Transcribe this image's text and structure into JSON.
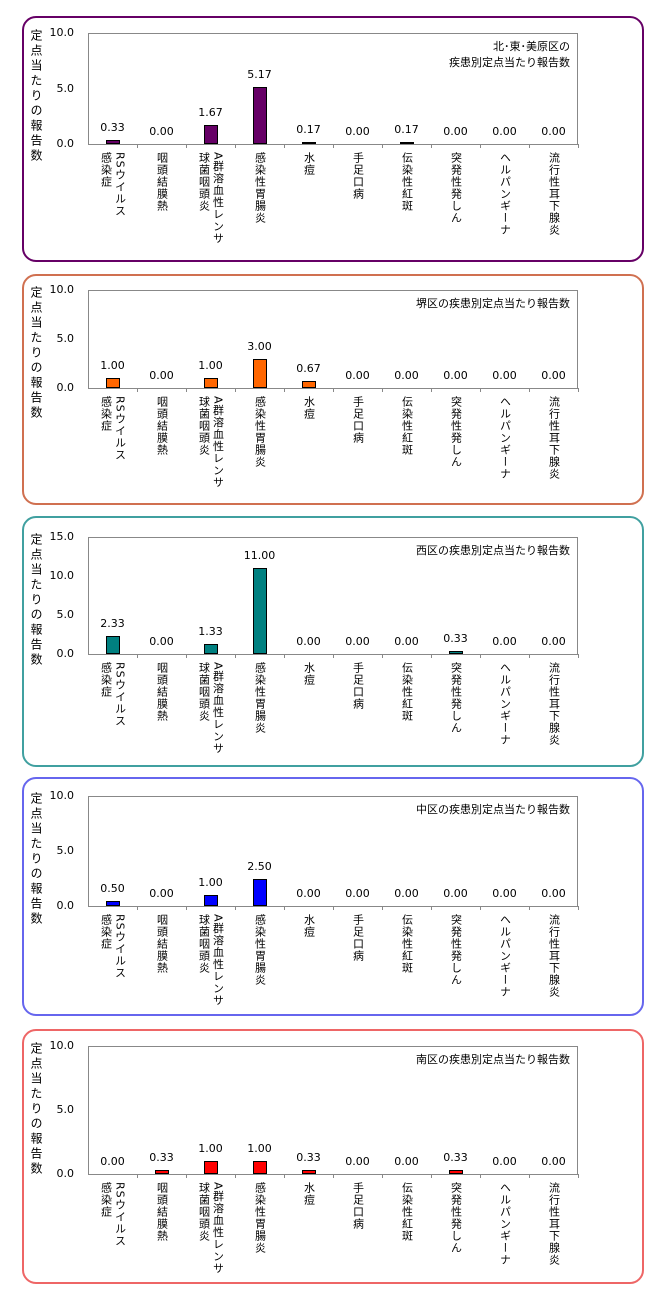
{
  "chart_data": [
    {
      "type": "bar",
      "title": "北･東･美原区の\n疾患別定点当たり報告数",
      "ylabel": "定点当たりの報告数",
      "ylim": [
        0,
        10
      ],
      "yticks": [
        "10.0",
        "5.0",
        "0.0"
      ],
      "color": "#660066",
      "border": "#660066",
      "categories": [
        "RSウイルス\n感染症",
        "咽頭結膜熱",
        "A群溶血性レンサ\n球菌咽頭炎",
        "感染性胃腸炎",
        "水痘",
        "手足口病",
        "伝染性紅斑",
        "突発性発しん",
        "ヘルパンギーナ",
        "流行性耳下腺炎"
      ],
      "values": [
        0.33,
        0.0,
        1.67,
        5.17,
        0.17,
        0.0,
        0.17,
        0.0,
        0.0,
        0.0
      ],
      "labels": [
        "0.33",
        "0.00",
        "1.67",
        "5.17",
        "0.17",
        "0.00",
        "0.17",
        "0.00",
        "0.00",
        "0.00"
      ]
    },
    {
      "type": "bar",
      "title": "堺区の疾患別定点当たり報告数",
      "ylabel": "定点当たりの報告数",
      "ylim": [
        0,
        10
      ],
      "yticks": [
        "10.0",
        "5.0",
        "0.0"
      ],
      "color": "#ff6600",
      "border": "#d07050",
      "categories": [
        "RSウイルス\n感染症",
        "咽頭結膜熱",
        "A群溶血性レンサ\n球菌咽頭炎",
        "感染性胃腸炎",
        "水痘",
        "手足口病",
        "伝染性紅斑",
        "突発性発しん",
        "ヘルパンギーナ",
        "流行性耳下腺炎"
      ],
      "values": [
        1.0,
        0.0,
        1.0,
        3.0,
        0.67,
        0.0,
        0.0,
        0.0,
        0.0,
        0.0
      ],
      "labels": [
        "1.00",
        "0.00",
        "1.00",
        "3.00",
        "0.67",
        "0.00",
        "0.00",
        "0.00",
        "0.00",
        "0.00"
      ]
    },
    {
      "type": "bar",
      "title": "西区の疾患別定点当たり報告数",
      "ylabel": "定点当たりの報告数",
      "ylim": [
        0,
        15
      ],
      "yticks": [
        "15.0",
        "10.0",
        "5.0",
        "0.0"
      ],
      "color": "#008080",
      "border": "#40a0a0",
      "categories": [
        "RSウイルス\n感染症",
        "咽頭結膜熱",
        "A群溶血性レンサ\n球菌咽頭炎",
        "感染性胃腸炎",
        "水痘",
        "手足口病",
        "伝染性紅斑",
        "突発性発しん",
        "ヘルパンギーナ",
        "流行性耳下腺炎"
      ],
      "values": [
        2.33,
        0.0,
        1.33,
        11.0,
        0.0,
        0.0,
        0.0,
        0.33,
        0.0,
        0.0
      ],
      "labels": [
        "2.33",
        "0.00",
        "1.33",
        "11.00",
        "0.00",
        "0.00",
        "0.00",
        "0.33",
        "0.00",
        "0.00"
      ]
    },
    {
      "type": "bar",
      "title": "中区の疾患別定点当たり報告数",
      "ylabel": "定点当たりの報告数",
      "ylim": [
        0,
        10
      ],
      "yticks": [
        "10.0",
        "5.0",
        "0.0"
      ],
      "color": "#0000ff",
      "border": "#6666ee",
      "categories": [
        "RSウイルス\n感染症",
        "咽頭結膜熱",
        "A群溶血性レンサ\n球菌咽頭炎",
        "感染性胃腸炎",
        "水痘",
        "手足口病",
        "伝染性紅斑",
        "突発性発しん",
        "ヘルパンギーナ",
        "流行性耳下腺炎"
      ],
      "values": [
        0.5,
        0.0,
        1.0,
        2.5,
        0.0,
        0.0,
        0.0,
        0.0,
        0.0,
        0.0
      ],
      "labels": [
        "0.50",
        "0.00",
        "1.00",
        "2.50",
        "0.00",
        "0.00",
        "0.00",
        "0.00",
        "0.00",
        "0.00"
      ]
    },
    {
      "type": "bar",
      "title": "南区の疾患別定点当たり報告数",
      "ylabel": "定点当たりの報告数",
      "ylim": [
        0,
        10
      ],
      "yticks": [
        "10.0",
        "5.0",
        "0.0"
      ],
      "color": "#ff0000",
      "border": "#ee6666",
      "categories": [
        "RSウイルス\n感染症",
        "咽頭結膜熱",
        "A群溶血性レンサ\n球菌咽頭炎",
        "感染性胃腸炎",
        "水痘",
        "手足口病",
        "伝染性紅斑",
        "突発性発しん",
        "ヘルパンギーナ",
        "流行性耳下腺炎"
      ],
      "values": [
        0.0,
        0.33,
        1.0,
        1.0,
        0.33,
        0.0,
        0.0,
        0.33,
        0.0,
        0.0
      ],
      "labels": [
        "0.00",
        "0.33",
        "1.00",
        "1.00",
        "0.33",
        "0.00",
        "0.00",
        "0.33",
        "0.00",
        "0.00"
      ]
    }
  ]
}
